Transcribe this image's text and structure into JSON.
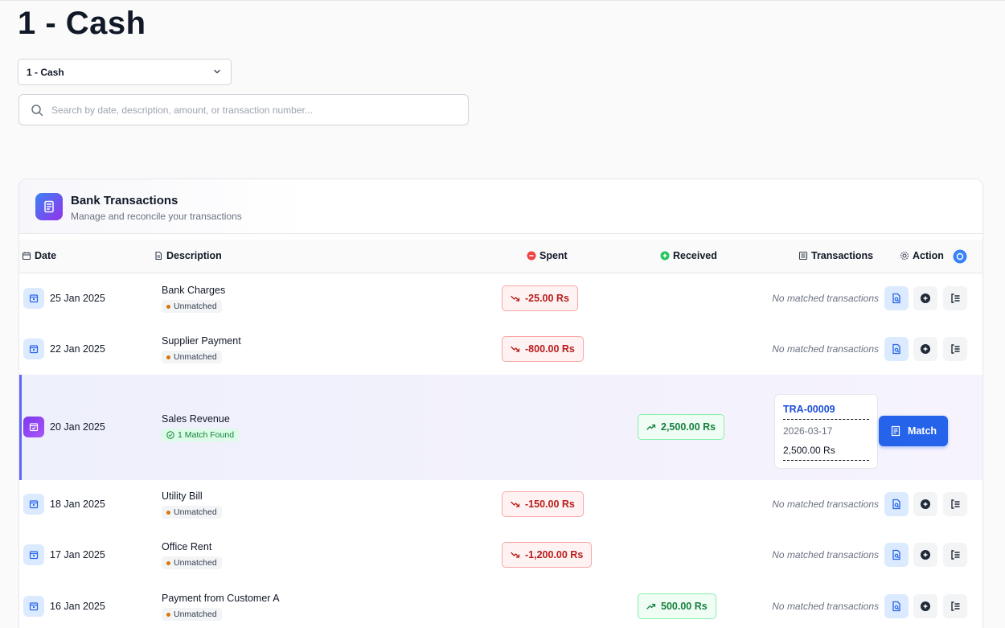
{
  "page": {
    "title": "1 - Cash"
  },
  "account_select": {
    "value": "1 - Cash"
  },
  "search": {
    "placeholder": "Search by date, description, amount, or transaction number..."
  },
  "card": {
    "title": "Bank Transactions",
    "subtitle": "Manage and reconcile your transactions"
  },
  "columns": {
    "date": "Date",
    "description": "Description",
    "spent": "Spent",
    "received": "Received",
    "transactions": "Transactions",
    "action": "Action"
  },
  "rows": [
    {
      "date": "25 Jan 2025",
      "description": "Bank Charges",
      "status": "Unmatched",
      "spent": "-25.00 Rs",
      "received": "",
      "transactions": "No matched transactions"
    },
    {
      "date": "22 Jan 2025",
      "description": "Supplier Payment",
      "status": "Unmatched",
      "spent": "-800.00 Rs",
      "received": "",
      "transactions": "No matched transactions"
    },
    {
      "date": "20 Jan 2025",
      "description": "Sales Revenue",
      "status": "1 Match Found",
      "spent": "",
      "received": "2,500.00 Rs",
      "match": {
        "number": "TRA-00009",
        "date": "2026-03-17",
        "amount": "2,500.00 Rs",
        "button": "Match"
      }
    },
    {
      "date": "18 Jan 2025",
      "description": "Utility Bill",
      "status": "Unmatched",
      "spent": "-150.00 Rs",
      "received": "",
      "transactions": "No matched transactions"
    },
    {
      "date": "17 Jan 2025",
      "description": "Office Rent",
      "status": "Unmatched",
      "spent": "-1,200.00 Rs",
      "received": "",
      "transactions": "No matched transactions"
    },
    {
      "date": "16 Jan 2025",
      "description": "Payment from Customer A",
      "status": "Unmatched",
      "spent": "",
      "received": "500.00 Rs",
      "transactions": "No matched transactions"
    }
  ],
  "colors": {
    "accent": "#2563eb",
    "spent": "#b91c1c",
    "received": "#15803d",
    "highlight_border": "#6366f1"
  }
}
